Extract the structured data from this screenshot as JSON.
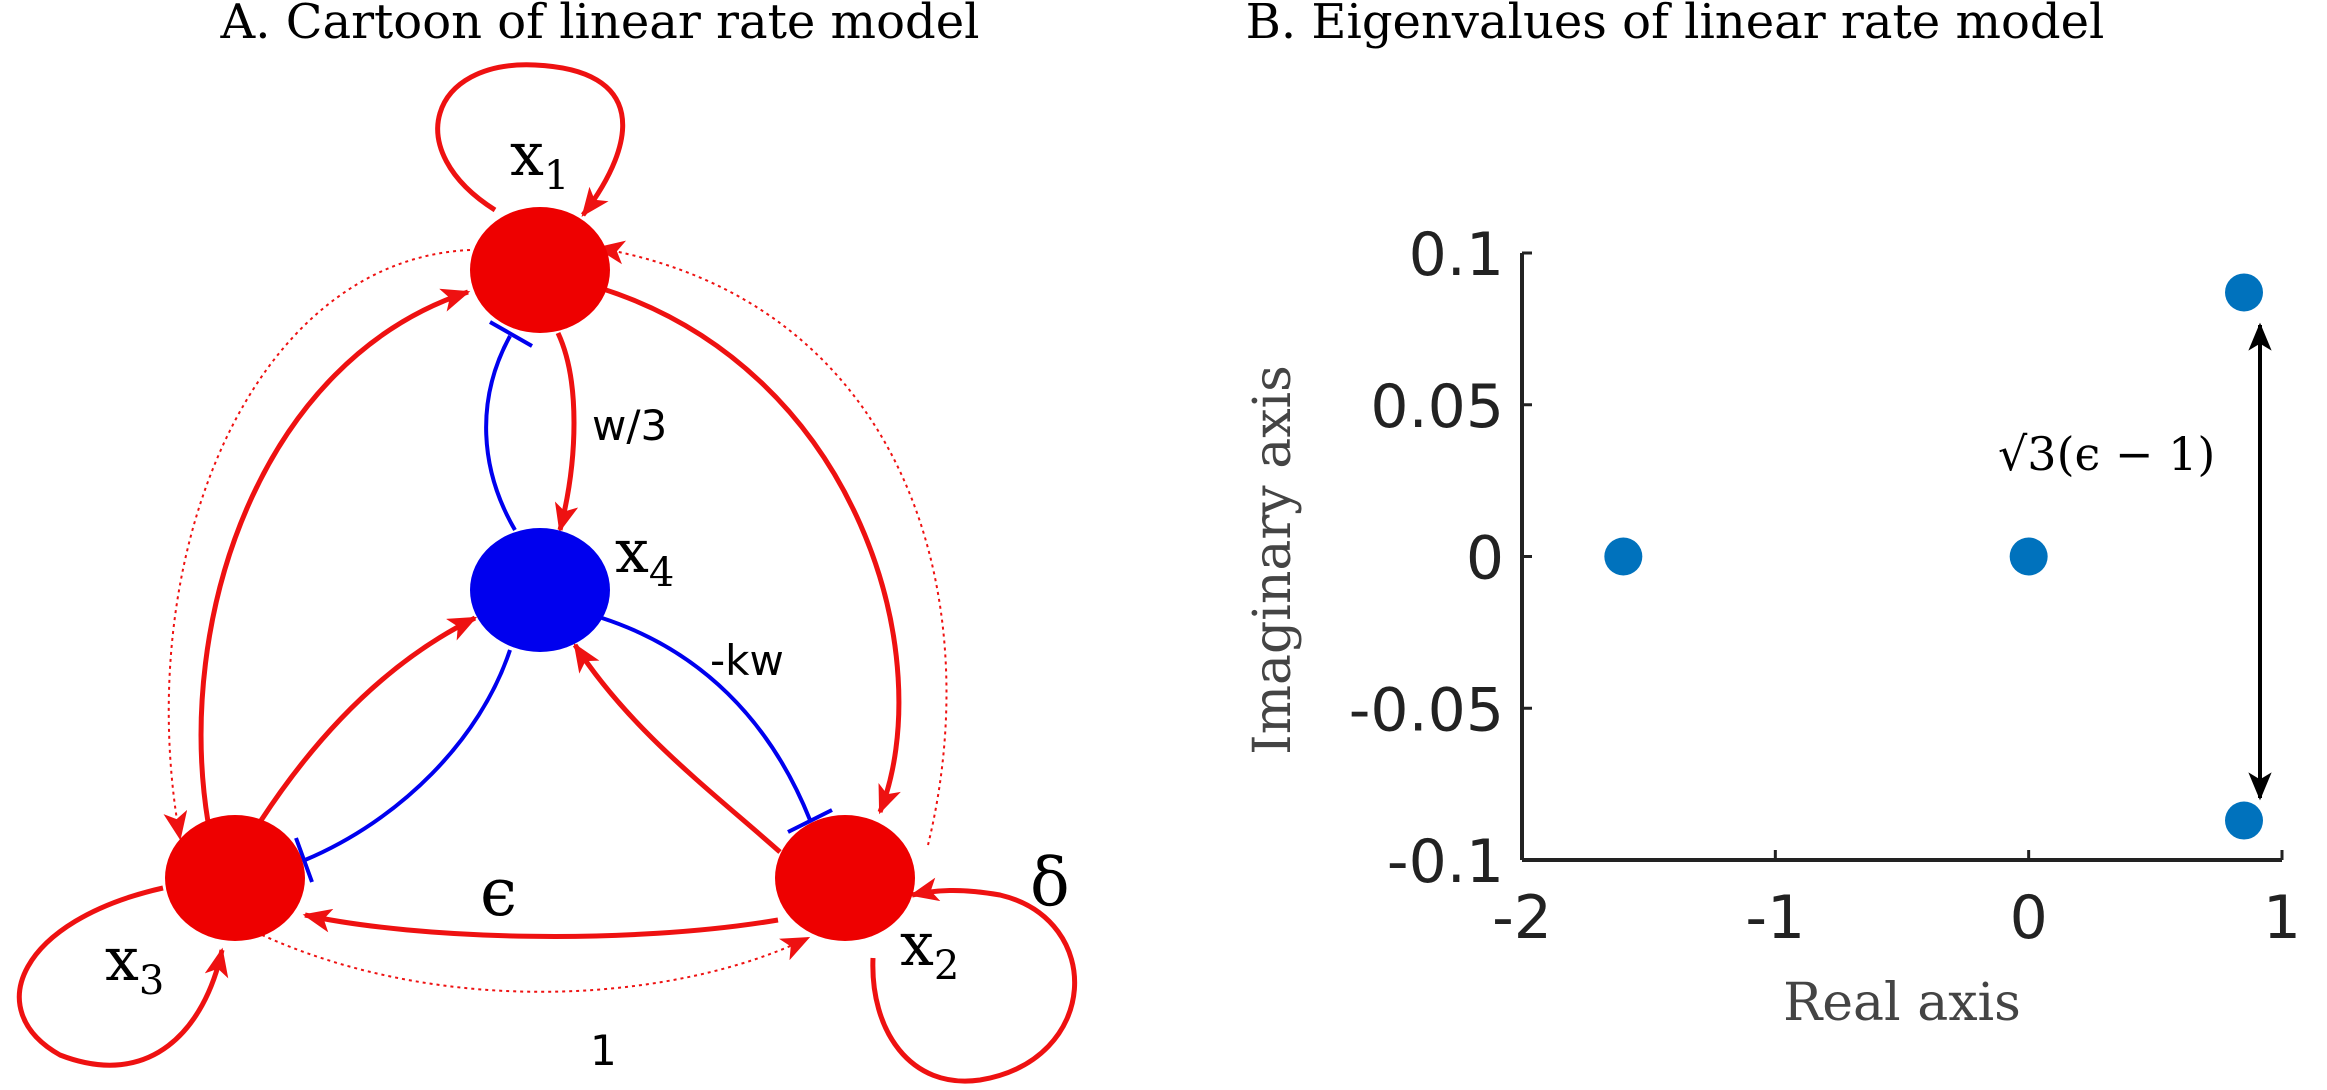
{
  "panel_a": {
    "title": "A. Cartoon of linear rate model",
    "nodes": {
      "x1": {
        "base": "x",
        "sub": "1"
      },
      "x2": {
        "base": "x",
        "sub": "2"
      },
      "x3": {
        "base": "x",
        "sub": "3"
      },
      "x4": {
        "base": "x",
        "sub": "4"
      }
    },
    "edge_labels": {
      "w3": "w/3",
      "kw": "-kw",
      "epsilon": "ϵ",
      "delta": "δ",
      "one": "1"
    },
    "colors": {
      "excitatory": "#ee0000",
      "inhibitory": "#0000ee",
      "line": "#ee1111"
    }
  },
  "panel_b": {
    "title": "B. Eigenvalues of linear rate model",
    "annotation": {
      "sqrt": "√3",
      "rest": "(ϵ − 1)"
    }
  },
  "chart_data": {
    "type": "scatter",
    "title": "B. Eigenvalues of linear rate model",
    "xlabel": "Real axis",
    "ylabel": "Imaginary axis",
    "xlim": [
      -2,
      1
    ],
    "ylim": [
      -0.1,
      0.1
    ],
    "xticks": [
      -2,
      -1,
      0,
      1
    ],
    "xtick_labels": [
      "-2",
      "-1",
      "0",
      "1"
    ],
    "yticks": [
      0.1,
      0.05,
      0,
      -0.05,
      -0.1
    ],
    "ytick_labels": [
      "0.1",
      "0.05",
      "0",
      "-0.05",
      "-0.1"
    ],
    "grid": false,
    "point_color": "#0072bd",
    "points": [
      {
        "x": -1.6,
        "y": 0
      },
      {
        "x": 0,
        "y": 0
      },
      {
        "x": 0.85,
        "y": 0.087
      },
      {
        "x": 0.85,
        "y": -0.087
      }
    ]
  }
}
